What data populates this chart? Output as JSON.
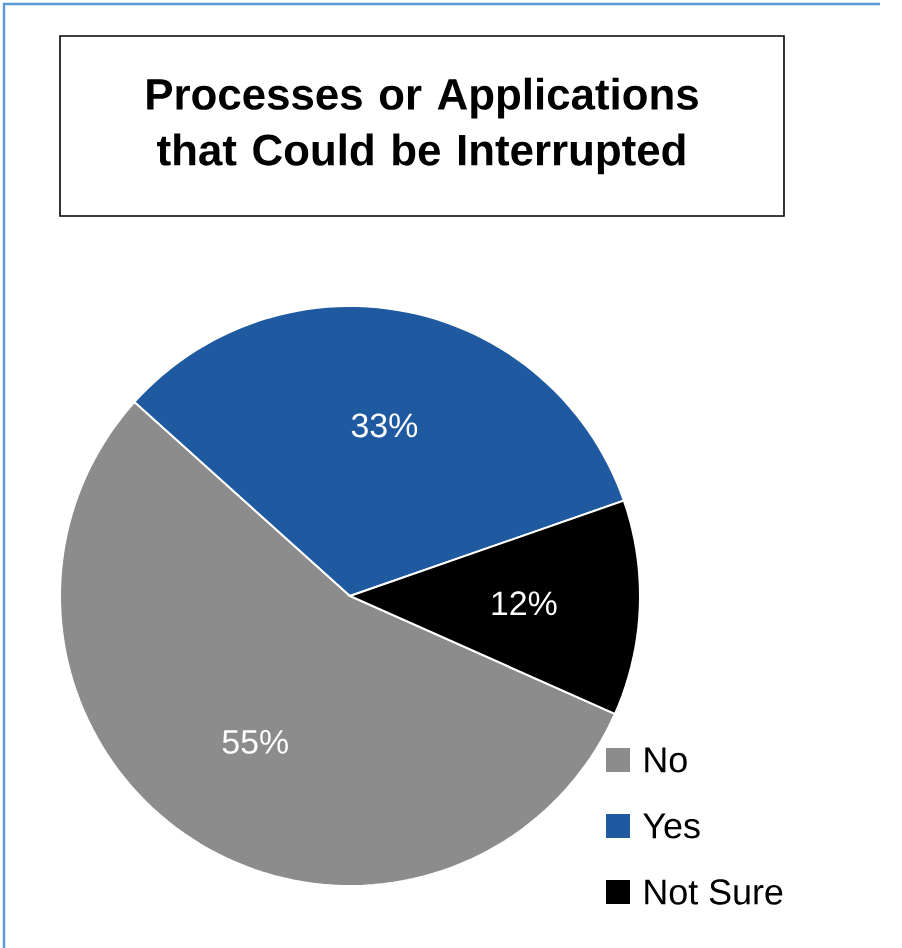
{
  "chart_data": {
    "type": "pie",
    "title": "Processes or Applications that Could be Interrupted",
    "categories": [
      "No",
      "Yes",
      "Not Sure"
    ],
    "values": [
      55,
      33,
      12
    ],
    "colors": [
      "#8c8c8c",
      "#1f5aa0",
      "#000000"
    ],
    "value_labels": [
      "55%",
      "33%",
      "12%"
    ],
    "legend": "bottom right"
  }
}
